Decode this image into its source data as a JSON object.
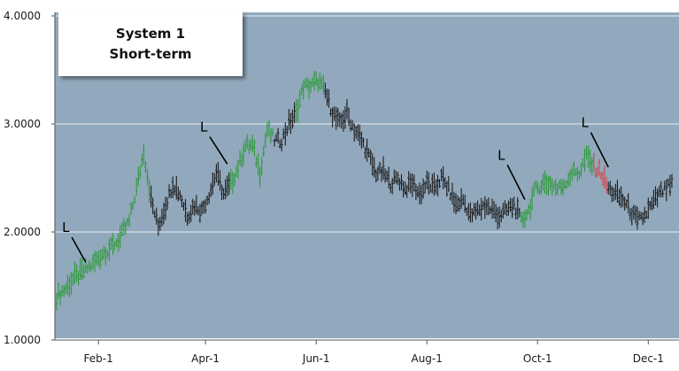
{
  "legend": {
    "line1": "System 1",
    "line2": "Short-term"
  },
  "colors": {
    "background": "#92a9bd",
    "gridline": "#d8e0e8",
    "bar_long": "#2e9a3a",
    "bar_flat": "#1c1c1c",
    "bar_short": "#d8434b"
  },
  "chart_data": {
    "type": "bar",
    "style": "ohlc-price-bars",
    "ylim": [
      1.0,
      4.0
    ],
    "yticks": [
      "1.0000",
      "2.0000",
      "3.0000",
      "4.0000"
    ],
    "ytick_values": [
      1.0,
      2.0,
      3.0,
      4.0
    ],
    "xticks": [
      {
        "label": "Feb-1",
        "x": 23
      },
      {
        "label": "Apr-1",
        "x": 82
      },
      {
        "label": "Jun-1",
        "x": 143
      },
      {
        "label": "Aug-1",
        "x": 204
      },
      {
        "label": "Oct-1",
        "x": 265
      },
      {
        "label": "Dec-1",
        "x": 326
      }
    ],
    "grid": true,
    "series": [
      {
        "values": [
          [
            0,
            1.4,
            "L"
          ],
          [
            5,
            1.48,
            "L"
          ],
          [
            10,
            1.58,
            "L"
          ],
          [
            15,
            1.64,
            "L"
          ],
          [
            20,
            1.7,
            "L"
          ],
          [
            25,
            1.8,
            "L"
          ],
          [
            30,
            1.85,
            "L"
          ],
          [
            35,
            1.95,
            "L"
          ],
          [
            40,
            2.1,
            "L"
          ],
          [
            44,
            2.4,
            "L"
          ],
          [
            48,
            2.75,
            "L"
          ],
          [
            52,
            2.3,
            "F"
          ],
          [
            56,
            2.05,
            "F"
          ],
          [
            60,
            2.25,
            "F"
          ],
          [
            64,
            2.45,
            "F"
          ],
          [
            68,
            2.35,
            "F"
          ],
          [
            72,
            2.15,
            "F"
          ],
          [
            76,
            2.25,
            "F"
          ],
          [
            80,
            2.2,
            "F"
          ],
          [
            84,
            2.35,
            "F"
          ],
          [
            88,
            2.55,
            "F"
          ],
          [
            92,
            2.35,
            "F"
          ],
          [
            96,
            2.45,
            "L"
          ],
          [
            100,
            2.6,
            "L"
          ],
          [
            104,
            2.8,
            "L"
          ],
          [
            108,
            2.8,
            "L"
          ],
          [
            112,
            2.55,
            "L"
          ],
          [
            116,
            2.95,
            "L"
          ],
          [
            120,
            2.85,
            "F"
          ],
          [
            124,
            2.85,
            "F"
          ],
          [
            128,
            3.0,
            "F"
          ],
          [
            132,
            3.1,
            "L"
          ],
          [
            136,
            3.35,
            "L"
          ],
          [
            140,
            3.35,
            "L"
          ],
          [
            144,
            3.4,
            "L"
          ],
          [
            148,
            3.3,
            "F"
          ],
          [
            152,
            3.1,
            "F"
          ],
          [
            156,
            3.0,
            "F"
          ],
          [
            160,
            3.1,
            "F"
          ],
          [
            164,
            2.95,
            "F"
          ],
          [
            168,
            2.85,
            "F"
          ],
          [
            172,
            2.7,
            "F"
          ],
          [
            176,
            2.55,
            "F"
          ],
          [
            180,
            2.55,
            "F"
          ],
          [
            184,
            2.45,
            "F"
          ],
          [
            188,
            2.5,
            "F"
          ],
          [
            192,
            2.4,
            "F"
          ],
          [
            196,
            2.45,
            "F"
          ],
          [
            200,
            2.35,
            "F"
          ],
          [
            204,
            2.45,
            "F"
          ],
          [
            208,
            2.4,
            "F"
          ],
          [
            212,
            2.5,
            "F"
          ],
          [
            216,
            2.4,
            "F"
          ],
          [
            220,
            2.25,
            "F"
          ],
          [
            224,
            2.3,
            "F"
          ],
          [
            228,
            2.15,
            "F"
          ],
          [
            232,
            2.2,
            "F"
          ],
          [
            236,
            2.25,
            "F"
          ],
          [
            240,
            2.2,
            "F"
          ],
          [
            244,
            2.15,
            "F"
          ],
          [
            248,
            2.2,
            "F"
          ],
          [
            252,
            2.25,
            "F"
          ],
          [
            256,
            2.1,
            "L"
          ],
          [
            260,
            2.2,
            "L"
          ],
          [
            264,
            2.4,
            "L"
          ],
          [
            268,
            2.45,
            "L"
          ],
          [
            272,
            2.45,
            "L"
          ],
          [
            276,
            2.4,
            "L"
          ],
          [
            280,
            2.45,
            "L"
          ],
          [
            284,
            2.55,
            "L"
          ],
          [
            288,
            2.55,
            "L"
          ],
          [
            292,
            2.7,
            "L"
          ],
          [
            296,
            2.6,
            "S"
          ],
          [
            300,
            2.55,
            "S"
          ],
          [
            304,
            2.4,
            "F"
          ],
          [
            308,
            2.35,
            "F"
          ],
          [
            312,
            2.3,
            "F"
          ],
          [
            316,
            2.2,
            "F"
          ],
          [
            320,
            2.1,
            "F"
          ],
          [
            324,
            2.15,
            "F"
          ],
          [
            328,
            2.25,
            "F"
          ],
          [
            332,
            2.35,
            "F"
          ],
          [
            336,
            2.4,
            "F"
          ],
          [
            340,
            2.45,
            "S"
          ]
        ]
      }
    ],
    "annotations": [
      {
        "text": "L",
        "x": 3,
        "y": 2.0,
        "to_x": 16,
        "to_y": 1.72
      },
      {
        "text": "L",
        "x": 79,
        "y": 2.93,
        "to_x": 94,
        "to_y": 2.63
      },
      {
        "text": "L",
        "x": 243,
        "y": 2.67,
        "to_x": 258,
        "to_y": 2.3
      },
      {
        "text": "L",
        "x": 289,
        "y": 2.97,
        "to_x": 304,
        "to_y": 2.6
      }
    ]
  }
}
